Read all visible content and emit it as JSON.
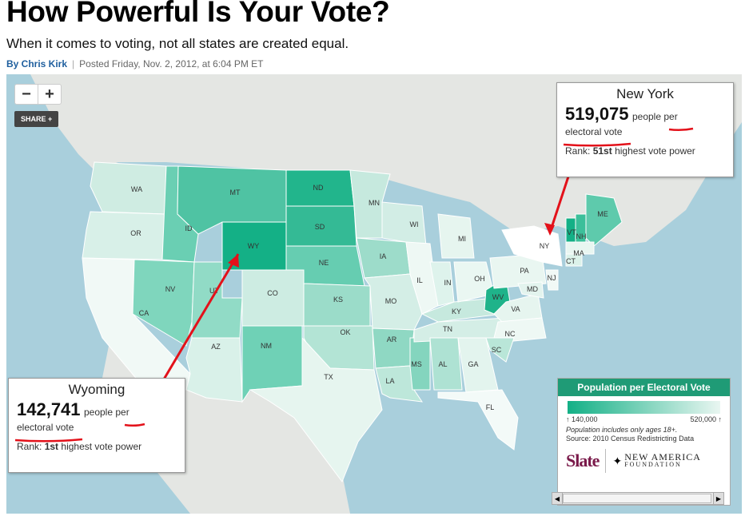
{
  "article": {
    "headline": "How Powerful Is Your Vote?",
    "subhead": "When it comes to voting, not all states are created equal.",
    "author": "By Chris Kirk",
    "posted": "Posted Friday, Nov. 2, 2012, at 6:04 PM ET"
  },
  "map_controls": {
    "zoom_out": "−",
    "zoom_in": "+",
    "share": "SHARE +"
  },
  "states": [
    {
      "abbr": "WA",
      "color": "#cfece2"
    },
    {
      "abbr": "OR",
      "color": "#d8f0e8"
    },
    {
      "abbr": "CA",
      "color": "#f1f9f6"
    },
    {
      "abbr": "ID",
      "color": "#6acfb3"
    },
    {
      "abbr": "NV",
      "color": "#7fd6bd"
    },
    {
      "abbr": "UT",
      "color": "#91dbc6"
    },
    {
      "abbr": "AZ",
      "color": "#d9f1e9"
    },
    {
      "abbr": "MT",
      "color": "#4fc3a3"
    },
    {
      "abbr": "WY",
      "color": "#14b086"
    },
    {
      "abbr": "CO",
      "color": "#cdece2"
    },
    {
      "abbr": "NM",
      "color": "#6fd1b6"
    },
    {
      "abbr": "ND",
      "color": "#22b58c"
    },
    {
      "abbr": "SD",
      "color": "#34ba95"
    },
    {
      "abbr": "NE",
      "color": "#66cdb1"
    },
    {
      "abbr": "KS",
      "color": "#9bdcc9"
    },
    {
      "abbr": "OK",
      "color": "#b3e4d5"
    },
    {
      "abbr": "TX",
      "color": "#e6f5ef"
    },
    {
      "abbr": "MN",
      "color": "#c6e9de"
    },
    {
      "abbr": "IA",
      "color": "#9ddcca"
    },
    {
      "abbr": "MO",
      "color": "#d4eee6"
    },
    {
      "abbr": "AR",
      "color": "#8fd8c3"
    },
    {
      "abbr": "LA",
      "color": "#bde7da"
    },
    {
      "abbr": "WI",
      "color": "#d2ede5"
    },
    {
      "abbr": "IL",
      "color": "#eef8f4"
    },
    {
      "abbr": "MS",
      "color": "#84d5be"
    },
    {
      "abbr": "MI",
      "color": "#e6f5ef"
    },
    {
      "abbr": "IN",
      "color": "#def3ec"
    },
    {
      "abbr": "KY",
      "color": "#c6e9de"
    },
    {
      "abbr": "TN",
      "color": "#d4eee6"
    },
    {
      "abbr": "AL",
      "color": "#aee2d3"
    },
    {
      "abbr": "GA",
      "color": "#e3f4ee"
    },
    {
      "abbr": "FL",
      "color": "#f3faf8"
    },
    {
      "abbr": "OH",
      "color": "#eaf7f2"
    },
    {
      "abbr": "WV",
      "color": "#1fb38a"
    },
    {
      "abbr": "VA",
      "color": "#e6f5ef"
    },
    {
      "abbr": "NC",
      "color": "#eef8f4"
    },
    {
      "abbr": "SC",
      "color": "#b9e6d8"
    },
    {
      "abbr": "PA",
      "color": "#e9f6f1"
    },
    {
      "abbr": "NY",
      "color": "#ffffff"
    },
    {
      "abbr": "VT",
      "color": "#14b086"
    },
    {
      "abbr": "NH",
      "color": "#3cbf9a"
    },
    {
      "abbr": "ME",
      "color": "#5ecaac"
    },
    {
      "abbr": "MA",
      "color": "#e9f6f1"
    },
    {
      "abbr": "CT",
      "color": "#dcf2ea"
    },
    {
      "abbr": "NJ",
      "color": "#f1f9f6"
    },
    {
      "abbr": "MD",
      "color": "#e3f4ee"
    }
  ],
  "tooltip_ny": {
    "state": "New York",
    "value": "519,075",
    "unit_a": "people per",
    "unit_b": "electoral vote",
    "rank_label": "Rank:",
    "rank_value": "51st",
    "rank_text": "highest vote power"
  },
  "tooltip_wy": {
    "state": "Wyoming",
    "value": "142,741",
    "unit_a": "people per",
    "unit_b": "electoral vote",
    "rank_label": "Rank:",
    "rank_value": "1st",
    "rank_text": "highest vote power"
  },
  "legend": {
    "title": "Population per Electoral Vote",
    "low": "↑ 140,000",
    "high": "520,000 ↑",
    "note": "Population includes only ages 18+.",
    "source": "Source: 2010 Census Redistricting Data",
    "color_low": "#13b086",
    "color_high": "#e9f6f1"
  },
  "logos": {
    "slate": "Slate",
    "naf_line1": "NEW AMERICA",
    "naf_line2": "FOUNDATION"
  },
  "annotation_color": "#e3111a"
}
